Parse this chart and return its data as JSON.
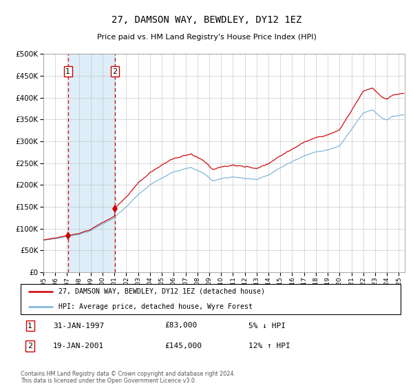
{
  "title": "27, DAMSON WAY, BEWDLEY, DY12 1EZ",
  "subtitle": "Price paid vs. HM Land Registry's House Price Index (HPI)",
  "hpi_color": "#7ab3d8",
  "sale_color": "#cc0000",
  "vline_color": "#cc0000",
  "shade_color": "#ddeef8",
  "grid_color": "#bbbbbb",
  "ylim": [
    0,
    500000
  ],
  "yticks": [
    0,
    50000,
    100000,
    150000,
    200000,
    250000,
    300000,
    350000,
    400000,
    450000,
    500000
  ],
  "sale1_t": 1997.08,
  "sale2_t": 2001.05,
  "sale1_price": 83000,
  "sale2_price": 145000,
  "legend_line1": "27, DAMSON WAY, BEWDLEY, DY12 1EZ (detached house)",
  "legend_line2": "HPI: Average price, detached house, Wyre Forest",
  "table_row1_num": "1",
  "table_row1_date": "31-JAN-1997",
  "table_row1_price": "£83,000",
  "table_row1_hpi": "5% ↓ HPI",
  "table_row2_num": "2",
  "table_row2_date": "19-JAN-2001",
  "table_row2_price": "£145,000",
  "table_row2_hpi": "12% ↑ HPI",
  "footnote": "Contains HM Land Registry data © Crown copyright and database right 2024.\nThis data is licensed under the Open Government Licence v3.0.",
  "xstart": 1995.0,
  "xend": 2025.5
}
